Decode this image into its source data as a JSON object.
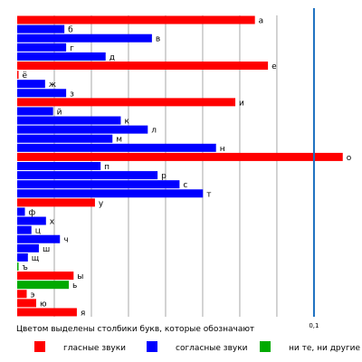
{
  "chart_data": {
    "type": "bar",
    "orientation": "horizontal",
    "categories": [
      "а",
      "б",
      "в",
      "г",
      "д",
      "е",
      "ё",
      "ж",
      "з",
      "и",
      "й",
      "к",
      "л",
      "м",
      "н",
      "о",
      "п",
      "р",
      "с",
      "т",
      "у",
      "ф",
      "х",
      "ц",
      "ч",
      "ш",
      "щ",
      "ъ",
      "ы",
      "ь",
      "э",
      "ю",
      "я"
    ],
    "values": [
      0.0801,
      0.0159,
      0.0454,
      0.0165,
      0.0298,
      0.0845,
      0.0004,
      0.0094,
      0.0165,
      0.0735,
      0.0121,
      0.0349,
      0.044,
      0.0321,
      0.067,
      0.1097,
      0.0281,
      0.0473,
      0.0547,
      0.0626,
      0.0262,
      0.0026,
      0.0097,
      0.0048,
      0.0144,
      0.0073,
      0.0036,
      0.0004,
      0.019,
      0.0174,
      0.0032,
      0.0064,
      0.0201
    ],
    "groups": [
      "vowel",
      "consonant",
      "consonant",
      "consonant",
      "consonant",
      "vowel",
      "vowel",
      "consonant",
      "consonant",
      "vowel",
      "consonant",
      "consonant",
      "consonant",
      "consonant",
      "consonant",
      "vowel",
      "consonant",
      "consonant",
      "consonant",
      "consonant",
      "vowel",
      "consonant",
      "consonant",
      "consonant",
      "consonant",
      "consonant",
      "consonant",
      "other",
      "vowel",
      "other",
      "vowel",
      "vowel",
      "vowel"
    ],
    "group_colors": {
      "vowel": "#ff0000",
      "consonant": "#0000ff",
      "other": "#00aa00"
    },
    "xlim": [
      0,
      0.111
    ],
    "x_ticks": [
      {
        "value": 0.1,
        "label": "0,1"
      }
    ],
    "reference_line": {
      "value": 0.1,
      "color": "#1a6fc0"
    },
    "grid": true,
    "grid_step": 0.0125,
    "caption": "Цветом выделены столбики букв, которые обозначают",
    "legend_position": "bottom",
    "legend": [
      {
        "group": "vowel",
        "label": "гласные звуки"
      },
      {
        "group": "consonant",
        "label": "согласные звуки"
      },
      {
        "group": "other",
        "label": "ни те, ни другие"
      }
    ]
  }
}
